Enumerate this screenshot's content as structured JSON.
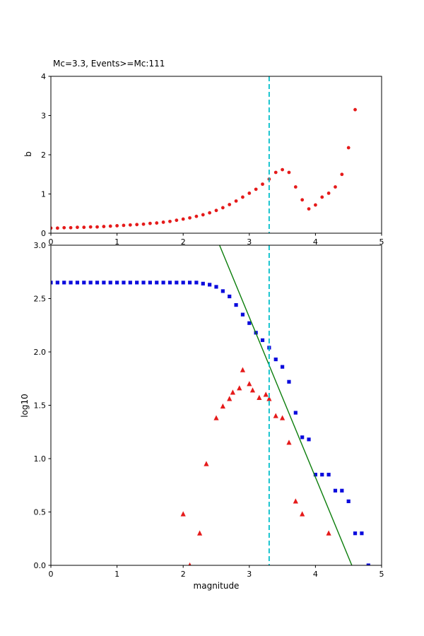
{
  "figure": {
    "background": "#ffffff",
    "mc_value": 3.3,
    "events_above_mc": 111
  },
  "colors": {
    "b_dots_red": "#e51a1a",
    "cumulative_blue": "#0b0bdd",
    "incremental_red": "#e51a1a",
    "fit_line_green": "#0a7d0a",
    "mc_line_cyan": "#00bfca",
    "axes_black": "#000000"
  },
  "chart_data": [
    {
      "id": "b-value-plot",
      "type": "scatter",
      "title": "Mc=3.3, Events>=Mc:111",
      "xlabel": "",
      "ylabel": "b",
      "xlim": [
        0,
        5
      ],
      "ylim": [
        0,
        4
      ],
      "grid": false,
      "legend": "none",
      "xticks": {
        "values": [
          0,
          1,
          2,
          3,
          4,
          5
        ],
        "labels": [
          "0",
          "1",
          "2",
          "3",
          "4",
          "5"
        ]
      },
      "yticks": {
        "values": [
          0,
          1,
          2,
          3,
          4
        ],
        "labels": [
          "0",
          "1",
          "2",
          "3",
          "4"
        ]
      },
      "vline": {
        "x": 3.3,
        "color": "#00bfca",
        "dash": [
          7,
          4
        ]
      },
      "series": [
        {
          "name": "b-value-vs-magnitude",
          "marker": "circle",
          "color": "#e51a1a",
          "size": 2.4,
          "points": [
            [
              0.0,
              0.13
            ],
            [
              0.1,
              0.13
            ],
            [
              0.2,
              0.14
            ],
            [
              0.3,
              0.14
            ],
            [
              0.4,
              0.15
            ],
            [
              0.5,
              0.15
            ],
            [
              0.6,
              0.16
            ],
            [
              0.7,
              0.16
            ],
            [
              0.8,
              0.17
            ],
            [
              0.9,
              0.18
            ],
            [
              1.0,
              0.19
            ],
            [
              1.1,
              0.2
            ],
            [
              1.2,
              0.21
            ],
            [
              1.3,
              0.22
            ],
            [
              1.4,
              0.23
            ],
            [
              1.5,
              0.25
            ],
            [
              1.6,
              0.26
            ],
            [
              1.7,
              0.28
            ],
            [
              1.8,
              0.3
            ],
            [
              1.9,
              0.33
            ],
            [
              2.0,
              0.36
            ],
            [
              2.1,
              0.39
            ],
            [
              2.2,
              0.43
            ],
            [
              2.3,
              0.47
            ],
            [
              2.4,
              0.52
            ],
            [
              2.5,
              0.58
            ],
            [
              2.6,
              0.65
            ],
            [
              2.7,
              0.73
            ],
            [
              2.8,
              0.82
            ],
            [
              2.9,
              0.92
            ],
            [
              3.0,
              1.02
            ],
            [
              3.1,
              1.12
            ],
            [
              3.2,
              1.25
            ],
            [
              3.3,
              1.38
            ],
            [
              3.4,
              1.55
            ],
            [
              3.5,
              1.62
            ],
            [
              3.6,
              1.55
            ],
            [
              3.7,
              1.18
            ],
            [
              3.8,
              0.85
            ],
            [
              3.9,
              0.62
            ],
            [
              4.0,
              0.72
            ],
            [
              4.1,
              0.92
            ],
            [
              4.2,
              1.02
            ],
            [
              4.3,
              1.18
            ],
            [
              4.4,
              1.5
            ],
            [
              4.5,
              2.18
            ],
            [
              4.6,
              3.15
            ]
          ]
        }
      ]
    },
    {
      "id": "fmd-plot",
      "type": "scatter",
      "title": "",
      "xlabel": "magnitude",
      "ylabel": "log10",
      "xlim": [
        0,
        5
      ],
      "ylim": [
        0,
        3
      ],
      "grid": false,
      "legend": "none",
      "xticks": {
        "values": [
          0,
          1,
          2,
          3,
          4,
          5
        ],
        "labels": [
          "0",
          "1",
          "2",
          "3",
          "4",
          "5"
        ]
      },
      "yticks": {
        "values": [
          0,
          0.5,
          1,
          1.5,
          2,
          2.5,
          3
        ],
        "labels": [
          "0.0",
          "0.5",
          "1.0",
          "1.5",
          "2.0",
          "2.5",
          "3.0"
        ]
      },
      "vline": {
        "x": 3.3,
        "color": "#00bfca",
        "dash": [
          7,
          4
        ]
      },
      "fit_line": {
        "from": [
          2.55,
          3.0
        ],
        "to": [
          4.55,
          0.0
        ],
        "color": "#0a7d0a",
        "slope_b": 1.5
      },
      "series": [
        {
          "name": "cumulative-counts-log10",
          "marker": "square",
          "color": "#0b0bdd",
          "size": 2.6,
          "points": [
            [
              0.0,
              2.65
            ],
            [
              0.1,
              2.65
            ],
            [
              0.2,
              2.65
            ],
            [
              0.3,
              2.65
            ],
            [
              0.4,
              2.65
            ],
            [
              0.5,
              2.65
            ],
            [
              0.6,
              2.65
            ],
            [
              0.7,
              2.65
            ],
            [
              0.8,
              2.65
            ],
            [
              0.9,
              2.65
            ],
            [
              1.0,
              2.65
            ],
            [
              1.1,
              2.65
            ],
            [
              1.2,
              2.65
            ],
            [
              1.3,
              2.65
            ],
            [
              1.4,
              2.65
            ],
            [
              1.5,
              2.65
            ],
            [
              1.6,
              2.65
            ],
            [
              1.7,
              2.65
            ],
            [
              1.8,
              2.65
            ],
            [
              1.9,
              2.65
            ],
            [
              2.0,
              2.65
            ],
            [
              2.1,
              2.65
            ],
            [
              2.2,
              2.65
            ],
            [
              2.3,
              2.64
            ],
            [
              2.4,
              2.63
            ],
            [
              2.5,
              2.61
            ],
            [
              2.6,
              2.57
            ],
            [
              2.7,
              2.52
            ],
            [
              2.8,
              2.44
            ],
            [
              2.9,
              2.35
            ],
            [
              3.0,
              2.27
            ],
            [
              3.1,
              2.18
            ],
            [
              3.2,
              2.11
            ],
            [
              3.3,
              2.04
            ],
            [
              3.4,
              1.93
            ],
            [
              3.5,
              1.86
            ],
            [
              3.6,
              1.72
            ],
            [
              3.7,
              1.43
            ],
            [
              3.8,
              1.2
            ],
            [
              3.9,
              1.18
            ],
            [
              4.0,
              0.85
            ],
            [
              4.1,
              0.85
            ],
            [
              4.2,
              0.85
            ],
            [
              4.3,
              0.7
            ],
            [
              4.4,
              0.7
            ],
            [
              4.5,
              0.6
            ],
            [
              4.6,
              0.3
            ],
            [
              4.7,
              0.3
            ],
            [
              4.8,
              0.0
            ]
          ]
        },
        {
          "name": "incremental-counts-log10",
          "marker": "triangle",
          "color": "#e51a1a",
          "size": 3.6,
          "points": [
            [
              2.0,
              0.48
            ],
            [
              2.1,
              0.0
            ],
            [
              2.25,
              0.3
            ],
            [
              2.35,
              0.95
            ],
            [
              2.5,
              1.38
            ],
            [
              2.6,
              1.49
            ],
            [
              2.7,
              1.56
            ],
            [
              2.75,
              1.62
            ],
            [
              2.85,
              1.66
            ],
            [
              2.9,
              1.83
            ],
            [
              3.0,
              1.7
            ],
            [
              3.05,
              1.64
            ],
            [
              3.15,
              1.57
            ],
            [
              3.25,
              1.6
            ],
            [
              3.3,
              1.56
            ],
            [
              3.4,
              1.4
            ],
            [
              3.5,
              1.38
            ],
            [
              3.6,
              1.15
            ],
            [
              3.7,
              0.6
            ],
            [
              3.8,
              0.48
            ],
            [
              4.2,
              0.3
            ]
          ]
        }
      ]
    }
  ]
}
